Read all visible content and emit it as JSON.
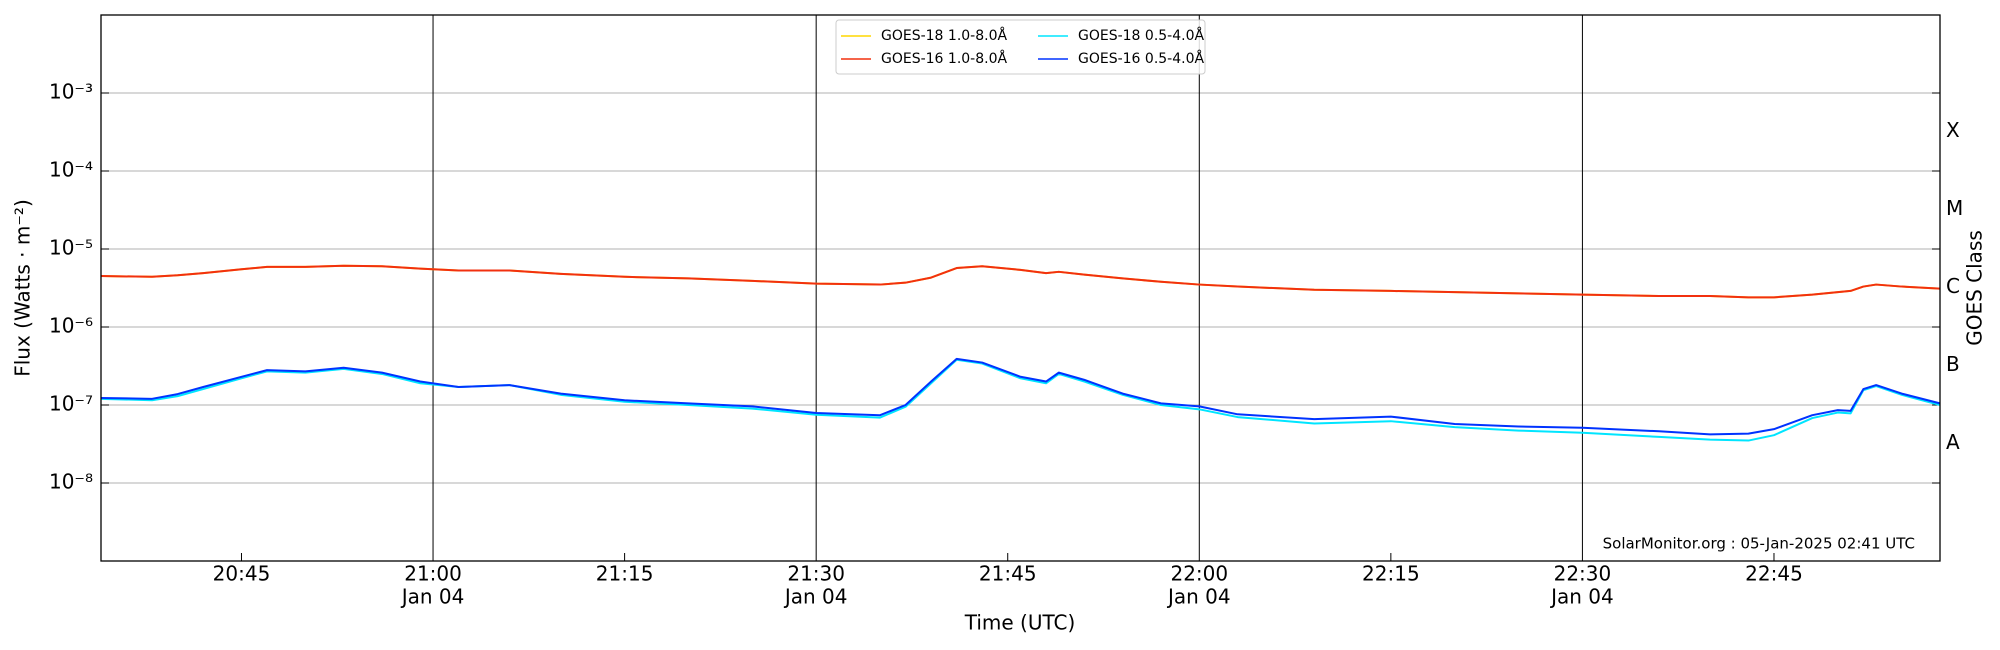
{
  "chart_data": {
    "type": "line",
    "xlabel": "Time (UTC)",
    "ylabel": "Flux (Watts · m⁻²)",
    "y2label": "GOES Class",
    "annotation": "SolarMonitor.org : 05-Jan-2025 02:41 UTC",
    "yscale": "log",
    "grid": true,
    "legend": "upper center",
    "x": [
      "20:34",
      "20:38",
      "20:40",
      "20:42",
      "20:45",
      "20:47",
      "20:50",
      "20:53",
      "20:56",
      "20:59",
      "21:02",
      "21:06",
      "21:10",
      "21:15",
      "21:20",
      "21:25",
      "21:30",
      "21:35",
      "21:37",
      "21:39",
      "21:41",
      "21:43",
      "21:46",
      "21:48",
      "21:49",
      "21:51",
      "21:54",
      "21:57",
      "22:00",
      "22:03",
      "22:09",
      "22:15",
      "22:20",
      "22:25",
      "22:30",
      "22:36",
      "22:40",
      "22:43",
      "22:45",
      "22:48",
      "22:50",
      "22:51",
      "22:52",
      "22:53",
      "22:55",
      "22:58"
    ],
    "xlim": [
      "20:34",
      "22:58"
    ],
    "xticks": [
      {
        "value": "20:45"
      },
      {
        "value": "21:00",
        "date": "Jan 04"
      },
      {
        "value": "21:15"
      },
      {
        "value": "21:30",
        "date": "Jan 04"
      },
      {
        "value": "21:45"
      },
      {
        "value": "22:00",
        "date": "Jan 04"
      },
      {
        "value": "22:15"
      },
      {
        "value": "22:30",
        "date": "Jan 04"
      },
      {
        "value": "22:45"
      }
    ],
    "ylim": [
      1e-09,
      0.01
    ],
    "yticks": [
      {
        "value": 1e-08,
        "label": "10⁻⁸"
      },
      {
        "value": 1e-07,
        "label": "10⁻⁷"
      },
      {
        "value": 1e-06,
        "label": "10⁻⁶"
      },
      {
        "value": 1e-05,
        "label": "10⁻⁵"
      },
      {
        "value": 0.0001,
        "label": "10⁻⁴"
      },
      {
        "value": 0.001,
        "label": "10⁻³"
      }
    ],
    "y2lim": [
      1e-09,
      0.01
    ],
    "y2ticks": [
      {
        "value": 0.00032,
        "label": "X"
      },
      {
        "value": 3.2e-05,
        "label": "M"
      },
      {
        "value": 3.2e-06,
        "label": "C"
      },
      {
        "value": 3.2e-07,
        "label": "B"
      },
      {
        "value": 3.2e-08,
        "label": "A"
      }
    ],
    "series": [
      {
        "name": "GOES-18 1.0-8.0Å",
        "color": "#ffd700",
        "values": [
          4.5e-06,
          4.4e-06,
          4.6e-06,
          4.9e-06,
          5.5e-06,
          5.9e-06,
          5.9e-06,
          6.1e-06,
          6e-06,
          5.6e-06,
          5.3e-06,
          5.3e-06,
          4.8e-06,
          4.4e-06,
          4.2e-06,
          3.9e-06,
          3.6e-06,
          3.5e-06,
          3.7e-06,
          4.3e-06,
          5.7e-06,
          6e-06,
          5.4e-06,
          4.9e-06,
          5.1e-06,
          4.7e-06,
          4.2e-06,
          3.8e-06,
          3.5e-06,
          3.3e-06,
          3e-06,
          2.9e-06,
          2.8e-06,
          2.7e-06,
          2.6e-06,
          2.5e-06,
          2.5e-06,
          2.4e-06,
          2.4e-06,
          2.6e-06,
          2.8e-06,
          2.9e-06,
          3.3e-06,
          3.5e-06,
          3.3e-06,
          3.1e-06
        ]
      },
      {
        "name": "GOES-16 1.0-8.0Å",
        "color": "#f2300f",
        "values": [
          4.5e-06,
          4.4e-06,
          4.6e-06,
          4.9e-06,
          5.5e-06,
          5.9e-06,
          5.9e-06,
          6.1e-06,
          6e-06,
          5.6e-06,
          5.3e-06,
          5.3e-06,
          4.8e-06,
          4.4e-06,
          4.2e-06,
          3.9e-06,
          3.6e-06,
          3.5e-06,
          3.7e-06,
          4.3e-06,
          5.7e-06,
          6e-06,
          5.4e-06,
          4.9e-06,
          5.1e-06,
          4.7e-06,
          4.2e-06,
          3.8e-06,
          3.5e-06,
          3.3e-06,
          3e-06,
          2.9e-06,
          2.8e-06,
          2.7e-06,
          2.6e-06,
          2.5e-06,
          2.5e-06,
          2.4e-06,
          2.4e-06,
          2.6e-06,
          2.8e-06,
          2.9e-06,
          3.3e-06,
          3.5e-06,
          3.3e-06,
          3.1e-06
        ]
      },
      {
        "name": "GOES-18 0.5-4.0Å",
        "color": "#00e5ff",
        "values": [
          1.2e-07,
          1.15e-07,
          1.3e-07,
          1.6e-07,
          2.2e-07,
          2.7e-07,
          2.6e-07,
          2.9e-07,
          2.5e-07,
          1.9e-07,
          1.7e-07,
          1.8e-07,
          1.35e-07,
          1.1e-07,
          1e-07,
          9e-08,
          7.5e-08,
          6.9e-08,
          9.5e-08,
          1.9e-07,
          3.8e-07,
          3.4e-07,
          2.2e-07,
          1.9e-07,
          2.5e-07,
          2e-07,
          1.35e-07,
          1e-07,
          8.8e-08,
          7e-08,
          5.8e-08,
          6.2e-08,
          5.2e-08,
          4.7e-08,
          4.4e-08,
          3.9e-08,
          3.6e-08,
          3.5e-08,
          4.1e-08,
          6.8e-08,
          8e-08,
          7.8e-08,
          1.55e-07,
          1.75e-07,
          1.35e-07,
          1e-07
        ]
      },
      {
        "name": "GOES-16 0.5-4.0Å",
        "color": "#0033ff",
        "values": [
          1.23e-07,
          1.2e-07,
          1.38e-07,
          1.7e-07,
          2.3e-07,
          2.8e-07,
          2.7e-07,
          3e-07,
          2.6e-07,
          2e-07,
          1.7e-07,
          1.8e-07,
          1.4e-07,
          1.15e-07,
          1.05e-07,
          9.6e-08,
          7.9e-08,
          7.4e-08,
          1e-07,
          2e-07,
          3.9e-07,
          3.5e-07,
          2.3e-07,
          2e-07,
          2.6e-07,
          2.1e-07,
          1.4e-07,
          1.05e-07,
          9.6e-08,
          7.6e-08,
          6.6e-08,
          7.1e-08,
          5.7e-08,
          5.3e-08,
          5.1e-08,
          4.6e-08,
          4.2e-08,
          4.3e-08,
          4.9e-08,
          7.4e-08,
          8.6e-08,
          8.4e-08,
          1.6e-07,
          1.8e-07,
          1.4e-07,
          1.05e-07
        ]
      }
    ]
  }
}
